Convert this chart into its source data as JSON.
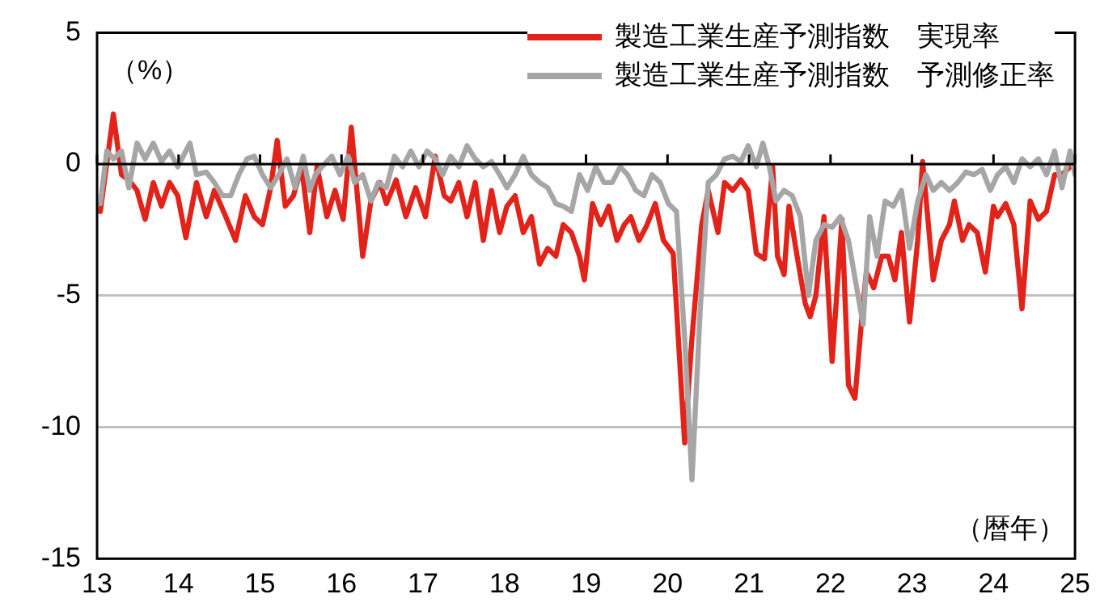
{
  "chart_data": {
    "type": "line",
    "xlabel": "（暦年）",
    "ylabel": "（%）",
    "xlim": [
      13,
      25
    ],
    "xticks": [
      13,
      14,
      15,
      16,
      17,
      18,
      19,
      20,
      21,
      22,
      23,
      24,
      25
    ],
    "ylim": [
      -15,
      5
    ],
    "yticks": [
      -15,
      -10,
      -5,
      0,
      5
    ],
    "grid": "y",
    "legend": "top right",
    "marker": "none",
    "line_style": "solid",
    "series": [
      {
        "name": "製造工業生産予測指数　実現率",
        "color": "#e2231a",
        "x": [
          13.04,
          13.2,
          13.3,
          13.39,
          13.49,
          13.59,
          13.69,
          13.79,
          13.89,
          13.99,
          14.09,
          14.22,
          14.34,
          14.44,
          14.58,
          14.7,
          14.82,
          14.93,
          15.03,
          15.13,
          15.21,
          15.31,
          15.41,
          15.51,
          15.61,
          15.7,
          15.82,
          15.92,
          16.02,
          16.12,
          16.26,
          16.36,
          16.47,
          16.55,
          16.67,
          16.79,
          16.91,
          17.03,
          17.15,
          17.26,
          17.34,
          17.44,
          17.54,
          17.64,
          17.74,
          17.84,
          17.94,
          18.03,
          18.13,
          18.23,
          18.33,
          18.43,
          18.53,
          18.63,
          18.72,
          18.82,
          18.92,
          18.98,
          19.08,
          19.18,
          19.28,
          19.38,
          19.47,
          19.55,
          19.65,
          19.75,
          19.85,
          19.95,
          20.07,
          20.21,
          20.3,
          20.42,
          20.5,
          20.62,
          20.7,
          20.8,
          20.9,
          20.99,
          21.09,
          21.19,
          21.29,
          21.35,
          21.43,
          21.49,
          21.59,
          21.69,
          21.75,
          21.82,
          21.92,
          22.02,
          22.14,
          22.22,
          22.3,
          22.38,
          22.44,
          22.53,
          22.63,
          22.71,
          22.79,
          22.87,
          22.97,
          23.07,
          23.13,
          23.21,
          23.26,
          23.36,
          23.46,
          23.52,
          23.62,
          23.7,
          23.8,
          23.9,
          24.0,
          24.05,
          24.15,
          24.25,
          24.35,
          24.45,
          24.55,
          24.65,
          24.75,
          24.84,
          24.94
        ],
        "values": [
          -1.8,
          1.9,
          -0.4,
          -0.6,
          -1.0,
          -2.1,
          -0.7,
          -1.6,
          -0.7,
          -1.2,
          -2.8,
          -0.7,
          -2.0,
          -1.0,
          -2.0,
          -2.9,
          -1.2,
          -2.0,
          -2.3,
          -0.9,
          0.9,
          -1.6,
          -1.2,
          -0.1,
          -2.6,
          -0.1,
          -2.0,
          -1.0,
          -2.1,
          1.4,
          -3.5,
          -1.4,
          -0.7,
          -1.5,
          -0.6,
          -2.0,
          -0.9,
          -2.0,
          0.3,
          -1.2,
          -1.4,
          -0.7,
          -2.0,
          -0.7,
          -2.9,
          -1.0,
          -2.6,
          -1.6,
          -1.2,
          -2.6,
          -2.0,
          -3.8,
          -3.2,
          -3.5,
          -2.3,
          -2.6,
          -3.5,
          -4.4,
          -1.5,
          -2.3,
          -1.6,
          -2.9,
          -2.3,
          -2.0,
          -2.9,
          -2.3,
          -1.5,
          -2.9,
          -3.4,
          -10.6,
          -6.6,
          -2.3,
          -1.0,
          -2.6,
          -0.7,
          -1.0,
          -0.6,
          -1.0,
          -3.4,
          -3.6,
          -0.1,
          -3.5,
          -4.2,
          -1.6,
          -3.5,
          -5.3,
          -5.8,
          -5.0,
          -2.0,
          -7.5,
          -2.1,
          -8.4,
          -8.9,
          -6.0,
          -4.1,
          -4.7,
          -3.5,
          -3.5,
          -4.4,
          -2.6,
          -6.0,
          -2.9,
          0.1,
          -2.6,
          -4.4,
          -2.9,
          -2.3,
          -1.4,
          -2.9,
          -2.3,
          -2.6,
          -4.1,
          -1.6,
          -2.0,
          -1.5,
          -2.3,
          -5.5,
          -1.4,
          -2.1,
          -1.8,
          -0.4,
          -0.4,
          -0.1
        ]
      },
      {
        "name": "製造工業生産予測指数　予測修正率",
        "color": "#a6a6a6",
        "x": [
          13.04,
          13.12,
          13.2,
          13.3,
          13.39,
          13.49,
          13.59,
          13.69,
          13.79,
          13.89,
          13.99,
          14.09,
          14.14,
          14.22,
          14.34,
          14.44,
          14.54,
          14.64,
          14.74,
          14.84,
          14.93,
          15.03,
          15.13,
          15.23,
          15.33,
          15.43,
          15.53,
          15.61,
          15.68,
          15.76,
          15.88,
          15.98,
          16.08,
          16.16,
          16.26,
          16.36,
          16.45,
          16.55,
          16.65,
          16.75,
          16.85,
          16.95,
          17.05,
          17.15,
          17.24,
          17.34,
          17.44,
          17.54,
          17.64,
          17.74,
          17.84,
          17.94,
          18.03,
          18.13,
          18.23,
          18.33,
          18.43,
          18.53,
          18.63,
          18.72,
          18.82,
          18.92,
          19.02,
          19.12,
          19.22,
          19.32,
          19.42,
          19.51,
          19.61,
          19.71,
          19.81,
          19.91,
          20.01,
          20.11,
          20.21,
          20.3,
          20.4,
          20.5,
          20.6,
          20.7,
          20.8,
          20.9,
          20.99,
          21.09,
          21.17,
          21.25,
          21.33,
          21.43,
          21.53,
          21.63,
          21.73,
          21.82,
          21.92,
          22.02,
          22.12,
          22.22,
          22.4,
          22.48,
          22.57,
          22.67,
          22.77,
          22.87,
          22.97,
          23.07,
          23.17,
          23.26,
          23.36,
          23.46,
          23.56,
          23.66,
          23.76,
          23.86,
          23.96,
          24.05,
          24.15,
          24.25,
          24.35,
          24.45,
          24.55,
          24.65,
          24.75,
          24.84,
          24.94,
          25.0
        ],
        "values": [
          -1.5,
          0.5,
          0.2,
          0.5,
          -0.9,
          0.8,
          0.2,
          0.8,
          0.1,
          0.5,
          -0.1,
          0.5,
          0.8,
          -0.4,
          -0.3,
          -0.7,
          -1.2,
          -1.2,
          -0.4,
          0.2,
          0.3,
          -0.4,
          -0.9,
          -0.4,
          0.2,
          -0.9,
          0.3,
          -1.0,
          -0.4,
          -0.1,
          0.3,
          -0.4,
          0.3,
          -0.7,
          -0.4,
          -1.4,
          -0.7,
          -0.9,
          0.3,
          -0.1,
          0.5,
          -0.1,
          0.5,
          0.2,
          -0.4,
          0.3,
          -0.1,
          0.7,
          0.2,
          -0.1,
          0.1,
          -0.4,
          -0.9,
          -0.4,
          0.3,
          -0.4,
          -0.7,
          -0.9,
          -1.5,
          -1.6,
          -1.8,
          -0.4,
          -1.0,
          -0.1,
          -0.7,
          -0.7,
          -0.1,
          -0.4,
          -1.0,
          -1.2,
          -0.4,
          -0.7,
          -1.5,
          -1.8,
          -6.6,
          -12.0,
          -5.6,
          -0.7,
          -0.4,
          0.2,
          0.3,
          0.1,
          0.7,
          -0.1,
          0.8,
          -0.1,
          -1.4,
          -1.0,
          -1.2,
          -2.0,
          -5.0,
          -2.9,
          -2.3,
          -2.4,
          -2.0,
          -2.9,
          -6.1,
          -2.0,
          -3.5,
          -1.4,
          -1.6,
          -1.0,
          -3.2,
          -1.4,
          -0.4,
          -1.0,
          -0.7,
          -1.0,
          -0.7,
          -0.3,
          -0.4,
          -0.2,
          -1.0,
          -0.4,
          -0.1,
          -0.7,
          0.2,
          -0.1,
          0.2,
          -0.4,
          0.5,
          -0.9,
          0.5,
          -0.4
        ]
      }
    ]
  }
}
